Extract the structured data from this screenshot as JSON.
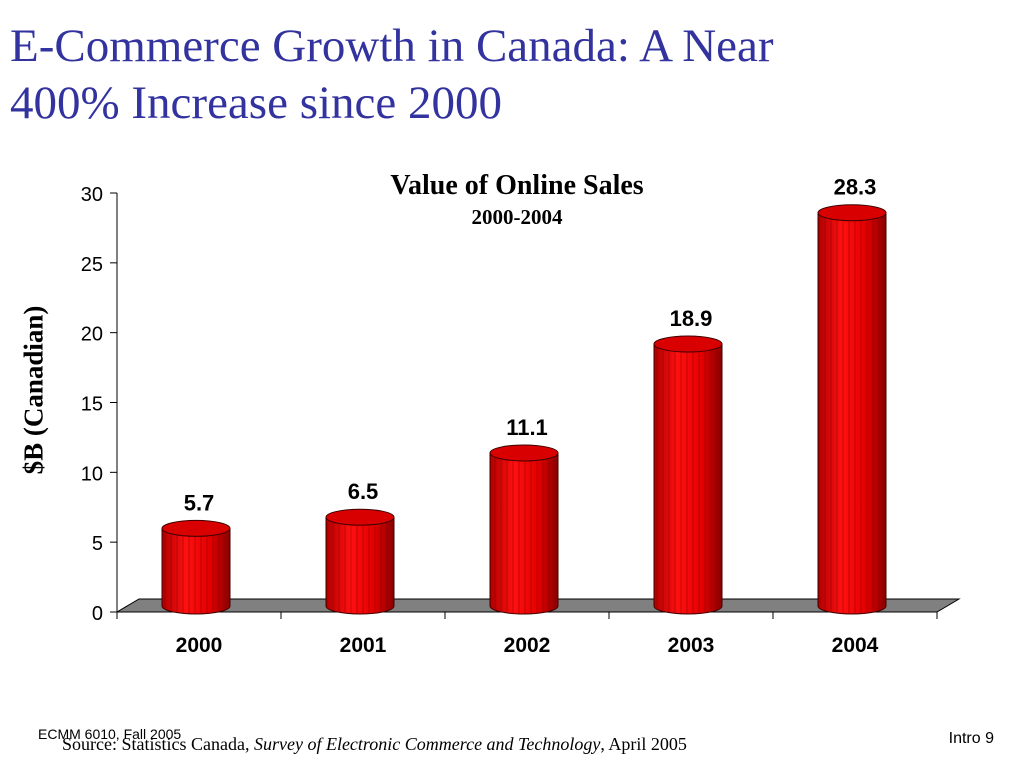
{
  "slide": {
    "title_line1": "E-Commerce Growth in Canada: A Near",
    "title_line2": "400% Increase since 2000",
    "footer_left": "ECMM 6010, Fall 2005",
    "footer_right": "Intro 9",
    "source_prefix": "Source: Statistics Canada, ",
    "source_italic": "Survey of Electronic Commerce and Technology",
    "source_suffix": ", April 2005"
  },
  "chart_data": {
    "type": "bar",
    "title": "Value of Online Sales",
    "subtitle": "2000-2004",
    "ylabel": "$B (Canadian)",
    "xlabel": "",
    "categories": [
      "2000",
      "2001",
      "2002",
      "2003",
      "2004"
    ],
    "values": [
      5.7,
      6.5,
      11.1,
      18.9,
      28.3
    ],
    "data_labels": [
      "5.7",
      "6.5",
      "11.1",
      "18.9",
      "28.3"
    ],
    "yticks": [
      0,
      5,
      10,
      15,
      20,
      25,
      30
    ],
    "ylim": [
      0,
      30
    ],
    "grid": false,
    "legend": "none",
    "bar_color": "#e00000",
    "floor_color": "#808080"
  }
}
